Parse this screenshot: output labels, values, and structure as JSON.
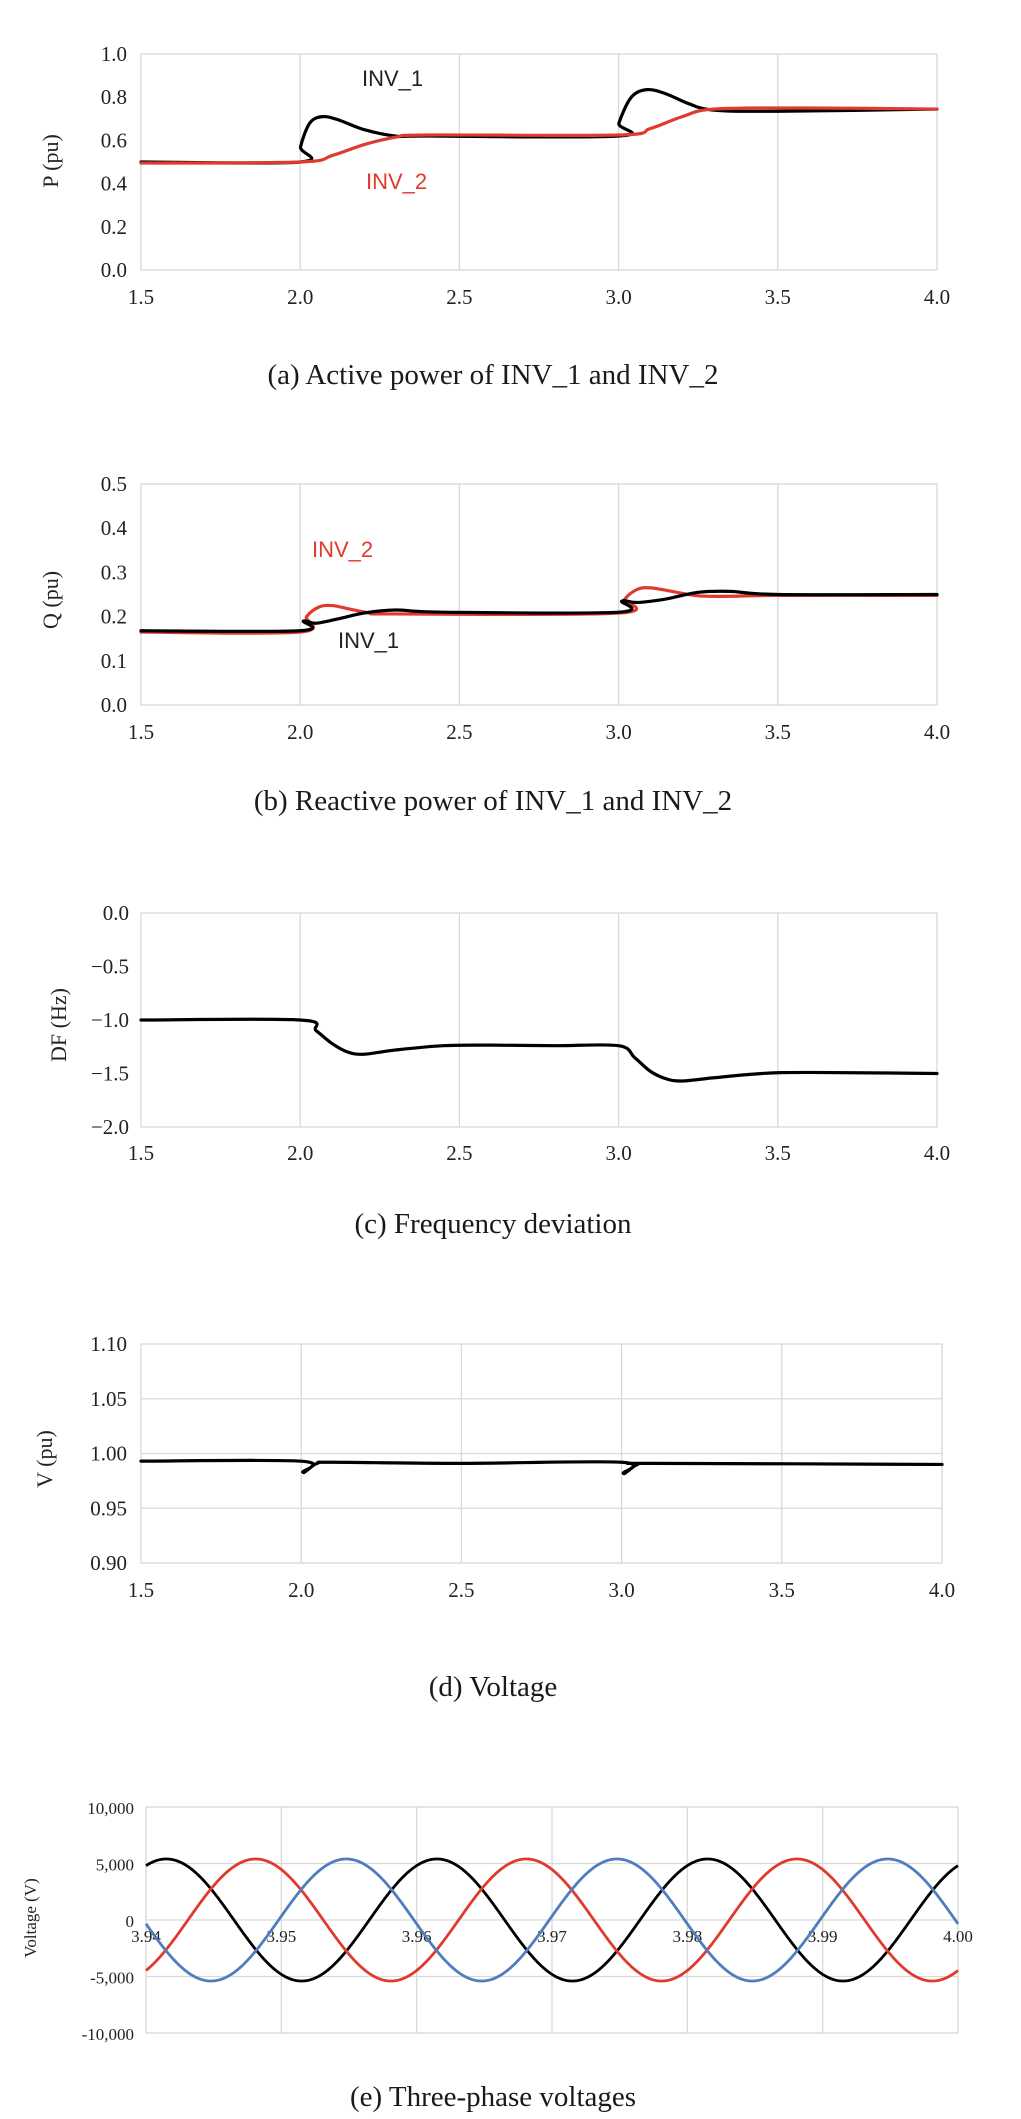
{
  "chart_data": [
    {
      "type": "line",
      "title": "(a) Active power of INV_1 and INV_2",
      "ylabel": "P (pu)",
      "xlabel": "",
      "xlim": [
        1.5,
        4.0
      ],
      "ylim": [
        0.0,
        1.0
      ],
      "x_ticks": [
        "1.5",
        "2.0",
        "2.5",
        "3.0",
        "3.5",
        "4.0"
      ],
      "y_ticks": [
        "0.0",
        "0.2",
        "0.4",
        "0.6",
        "0.8",
        "1.0"
      ],
      "grid": "vertical",
      "series": [
        {
          "name": "INV_1",
          "color": "#000000",
          "x": [
            1.5,
            2.0,
            2.001,
            2.03,
            2.07,
            2.12,
            2.2,
            2.3,
            2.4,
            3.0,
            3.001,
            3.04,
            3.09,
            3.15,
            3.22,
            3.3,
            3.5,
            4.0
          ],
          "y": [
            0.5,
            0.5,
            0.57,
            0.68,
            0.71,
            0.695,
            0.65,
            0.62,
            0.62,
            0.62,
            0.68,
            0.8,
            0.835,
            0.815,
            0.77,
            0.74,
            0.735,
            0.745
          ]
        },
        {
          "name": "INV_2",
          "color": "#e03a2e",
          "x": [
            1.5,
            2.0,
            2.1,
            2.2,
            2.3,
            2.4,
            3.0,
            3.1,
            3.2,
            3.3,
            3.6,
            4.0
          ],
          "y": [
            0.495,
            0.5,
            0.53,
            0.58,
            0.615,
            0.625,
            0.625,
            0.655,
            0.71,
            0.745,
            0.75,
            0.745
          ]
        }
      ],
      "annotations": [
        "INV_1",
        "INV_2"
      ]
    },
    {
      "type": "line",
      "title": "(b) Reactive power of INV_1 and INV_2",
      "ylabel": "Q (pu)",
      "xlabel": "",
      "xlim": [
        1.5,
        4.0
      ],
      "ylim": [
        0.0,
        0.5
      ],
      "x_ticks": [
        "1.5",
        "2.0",
        "2.5",
        "3.0",
        "3.5",
        "4.0"
      ],
      "y_ticks": [
        "0.0",
        "0.1",
        "0.2",
        "0.3",
        "0.4",
        "0.5"
      ],
      "grid": "vertical",
      "series": [
        {
          "name": "INV_2",
          "color": "#e03a2e",
          "x": [
            1.5,
            2.0,
            2.02,
            2.06,
            2.1,
            2.15,
            2.22,
            2.3,
            3.0,
            3.02,
            3.06,
            3.1,
            3.16,
            3.25,
            3.35,
            3.5,
            4.0
          ],
          "y": [
            0.165,
            0.165,
            0.2,
            0.222,
            0.225,
            0.218,
            0.208,
            0.206,
            0.208,
            0.24,
            0.262,
            0.265,
            0.258,
            0.247,
            0.246,
            0.248,
            0.248
          ]
        },
        {
          "name": "INV_1",
          "color": "#000000",
          "x": [
            1.5,
            2.0,
            2.01,
            2.05,
            2.12,
            2.2,
            2.3,
            2.45,
            3.0,
            3.01,
            3.06,
            3.15,
            3.25,
            3.35,
            3.5,
            4.0
          ],
          "y": [
            0.168,
            0.168,
            0.19,
            0.185,
            0.195,
            0.208,
            0.215,
            0.21,
            0.21,
            0.235,
            0.232,
            0.24,
            0.255,
            0.257,
            0.25,
            0.25
          ]
        }
      ],
      "annotations": [
        "INV_2",
        "INV_1"
      ]
    },
    {
      "type": "line",
      "title": "(c) Frequency deviation",
      "ylabel": "DF (Hz)",
      "xlabel": "",
      "xlim": [
        1.5,
        4.0
      ],
      "ylim": [
        -2.0,
        0.0
      ],
      "x_ticks": [
        "1.5",
        "2.0",
        "2.5",
        "3.0",
        "3.5",
        "4.0"
      ],
      "y_ticks": [
        "−2.0",
        "−1.5",
        "−1.0",
        "−0.5",
        "0.0"
      ],
      "grid": "vertical",
      "series": [
        {
          "name": "",
          "color": "#000000",
          "x": [
            1.5,
            2.0,
            2.05,
            2.1,
            2.15,
            2.2,
            2.3,
            2.45,
            2.6,
            2.8,
            3.0,
            3.05,
            3.1,
            3.15,
            3.2,
            3.3,
            3.45,
            3.6,
            4.0
          ],
          "y": [
            -1.0,
            -1.0,
            -1.1,
            -1.22,
            -1.3,
            -1.32,
            -1.28,
            -1.24,
            -1.235,
            -1.24,
            -1.24,
            -1.35,
            -1.48,
            -1.55,
            -1.57,
            -1.54,
            -1.5,
            -1.49,
            -1.5
          ]
        }
      ]
    },
    {
      "type": "line",
      "title": "(d) Voltage",
      "ylabel": "V (pu)",
      "xlabel": "",
      "xlim": [
        1.5,
        4.0
      ],
      "ylim": [
        0.9,
        1.1
      ],
      "x_ticks": [
        "1.5",
        "2.0",
        "2.5",
        "3.0",
        "3.5",
        "4.0"
      ],
      "y_ticks": [
        "0.90",
        "0.95",
        "1.00",
        "1.05",
        "1.10"
      ],
      "grid": "both",
      "series": [
        {
          "name": "",
          "color": "#000000",
          "x": [
            1.5,
            2.0,
            2.005,
            2.02,
            2.05,
            2.1,
            2.5,
            3.0,
            3.005,
            3.02,
            3.05,
            3.1,
            4.0
          ],
          "y": [
            0.993,
            0.993,
            0.983,
            0.985,
            0.991,
            0.992,
            0.991,
            0.992,
            0.982,
            0.984,
            0.99,
            0.991,
            0.99
          ]
        }
      ]
    },
    {
      "type": "line",
      "title": "(e) Three-phase voltages",
      "ylabel": "Voltage (V)",
      "xlabel": "",
      "xlim": [
        3.94,
        4.0
      ],
      "ylim": [
        -10000,
        10000
      ],
      "x_ticks": [
        "3.94",
        "3.95",
        "3.96",
        "3.97",
        "3.98",
        "3.99",
        "4.00"
      ],
      "y_ticks": [
        "-10,000",
        "-5,000",
        "0",
        "5,000",
        "10,000"
      ],
      "grid": "both",
      "waveform": {
        "amplitude": 5400,
        "frequency_hz": 50,
        "phase_peak_times": [
          3.9415,
          3.9481,
          3.9548
        ]
      },
      "series": [
        {
          "name": "",
          "color": "#000000",
          "x": [
            3.94,
            3.9415,
            3.9465,
            3.9515,
            3.9565,
            3.9615,
            3.9665,
            3.9715,
            3.9765,
            3.9815,
            3.9865,
            3.9915,
            3.9965,
            4.0
          ],
          "y": [
            5300,
            5400,
            0,
            -5400,
            0,
            5400,
            0,
            -5400,
            0,
            5400,
            0,
            -5400,
            0,
            4800
          ]
        },
        {
          "name": "",
          "color": "#e03a2e",
          "x": [
            3.94,
            3.9481,
            3.9531,
            3.9581,
            3.9631,
            3.9681,
            3.9731,
            3.9781,
            3.9831,
            3.9881,
            3.9931,
            3.9981,
            4.0
          ],
          "y": [
            -2300,
            5400,
            0,
            -5400,
            0,
            5400,
            0,
            -5400,
            0,
            5400,
            0,
            -5400,
            -4700
          ]
        },
        {
          "name": "",
          "color": "#4f7dbd",
          "x": [
            3.94,
            3.9448,
            3.9498,
            3.9548,
            3.9598,
            3.9648,
            3.9698,
            3.9748,
            3.9798,
            3.9848,
            3.9898,
            3.9948,
            3.9998,
            4.0
          ],
          "y": [
            -3000,
            -5400,
            0,
            5400,
            0,
            -5400,
            0,
            5400,
            0,
            -5400,
            0,
            5400,
            0,
            -100
          ]
        }
      ]
    }
  ]
}
